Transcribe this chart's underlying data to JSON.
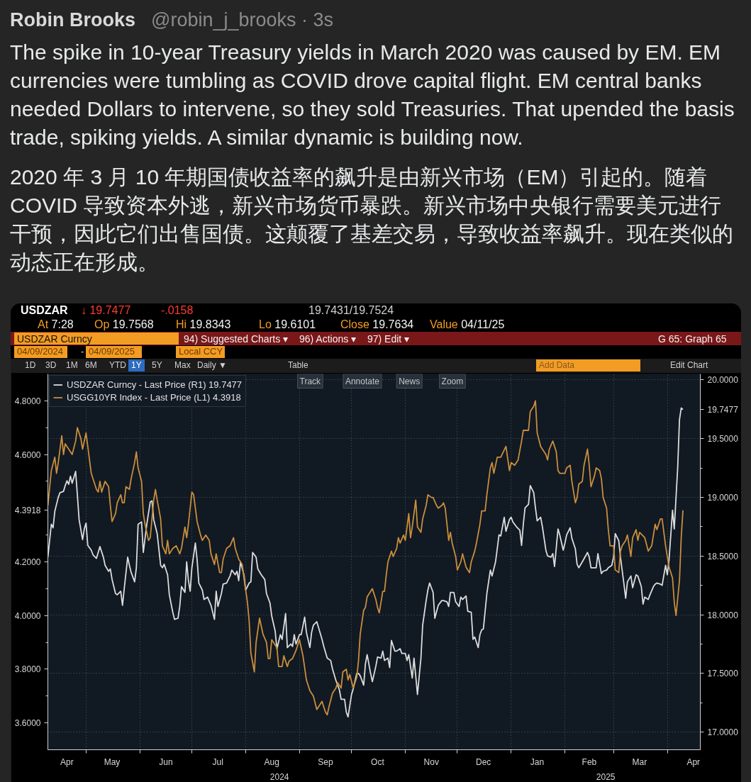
{
  "chart_data": {
    "type": "line",
    "title": "The spike in 10-year Treasury yields in March 2020 was caused by EM. EM currencies were tumbling as COVID drove capital flight. EM central banks needed Dollars to intervene, so they sold Treasuries. That upended the basis trade, spiking yields. A similar dynamic is building now.",
    "subtitle": "2020 年 3 月 10 年期国债收益率的飙升是由新兴市场（EM）引起的。随着 COVID 导致资本外逃，新兴市场货币暴跌。新兴市场中央银行需要美元进行干预，因此它们出售国债。这颠覆了基差交易，导致收益率飙升。现在类似的动态正在形成。",
    "annotations": [
      "Robin Brooks",
      "@robin_j_brooks · 3s",
      "USDZAR",
      "↓ 19.7477",
      "-.0158",
      "19.7431/19.7524",
      "At 7:28",
      "Op 19.7568",
      "Hi 19.8343",
      "Lo 19.6101",
      "Close 19.7634",
      "Value 04/11/25",
      "USDZAR Curncy",
      "94) Suggested Charts ▾",
      "96) Actions ▾",
      "97) Edit ▾",
      "G 65: Graph 65",
      "04/09/2024",
      "-",
      "04/09/2025",
      "Local CCY",
      "1D",
      "3D",
      "1M",
      "6M",
      "YTD",
      "1Y",
      "5Y",
      "Max",
      "Daily ▼",
      "Table",
      "Add Data",
      "Edit Chart",
      "Track",
      "Annotate",
      "News",
      "Zoom",
      "2024",
      "2025"
    ],
    "xlim": [
      "2024-04-09",
      "2025-04-20"
    ],
    "xticks": [
      {
        "value": "2024-04-20",
        "label": "Apr"
      },
      {
        "value": "2024-05-01",
        "label": null
      },
      {
        "value": "2024-05-16",
        "label": "May"
      },
      {
        "value": "2024-06-01",
        "label": null
      },
      {
        "value": "2024-06-16",
        "label": "Jun"
      },
      {
        "value": "2024-07-01",
        "label": null
      },
      {
        "value": "2024-07-16",
        "label": "Jul"
      },
      {
        "value": "2024-08-01",
        "label": null
      },
      {
        "value": "2024-08-16",
        "label": "Aug"
      },
      {
        "value": "2024-09-01",
        "label": null
      },
      {
        "value": "2024-09-16",
        "label": "Sep"
      },
      {
        "value": "2024-10-01",
        "label": null
      },
      {
        "value": "2024-10-16",
        "label": "Oct"
      },
      {
        "value": "2024-11-01",
        "label": null
      },
      {
        "value": "2024-11-16",
        "label": "Nov"
      },
      {
        "value": "2024-12-01",
        "label": null
      },
      {
        "value": "2024-12-16",
        "label": "Dec"
      },
      {
        "value": "2025-01-01",
        "label": null
      },
      {
        "value": "2025-01-16",
        "label": "Jan"
      },
      {
        "value": "2025-02-01",
        "label": null
      },
      {
        "value": "2025-02-15",
        "label": "Feb"
      },
      {
        "value": "2025-03-01",
        "label": null
      },
      {
        "value": "2025-03-16",
        "label": "Mar"
      },
      {
        "value": "2025-04-01",
        "label": null
      },
      {
        "value": "2025-04-16",
        "label": "Apr"
      }
    ],
    "ylim": [
      3.5,
      4.9
    ],
    "yticks": [
      {
        "value": 3.6,
        "label": "3.6000"
      },
      {
        "value": 3.7,
        "label": null
      },
      {
        "value": 3.8,
        "label": "3.8000"
      },
      {
        "value": 3.9,
        "label": null
      },
      {
        "value": 4.0,
        "label": "4.0000"
      },
      {
        "value": 4.1,
        "label": null
      },
      {
        "value": 4.2,
        "label": "4.2000"
      },
      {
        "value": 4.3,
        "label": null
      },
      {
        "value": 4.3918,
        "label": "4.3918"
      },
      {
        "value": 4.5,
        "label": null
      },
      {
        "value": 4.6,
        "label": "4.6000"
      },
      {
        "value": 4.7,
        "label": null
      },
      {
        "value": 4.8,
        "label": "4.8000"
      }
    ],
    "y2lim": [
      16.85,
      20.05
    ],
    "y2ticks": [
      {
        "value": 17.0,
        "label": "17.0000"
      },
      {
        "value": 17.25,
        "label": null
      },
      {
        "value": 17.5,
        "label": "17.5000"
      },
      {
        "value": 17.75,
        "label": null
      },
      {
        "value": 18.0,
        "label": "18.0000"
      },
      {
        "value": 18.25,
        "label": null
      },
      {
        "value": 18.5,
        "label": "18.5000"
      },
      {
        "value": 18.75,
        "label": null
      },
      {
        "value": 19.0,
        "label": "19.0000"
      },
      {
        "value": 19.25,
        "label": null
      },
      {
        "value": 19.5,
        "label": "19.5000"
      },
      {
        "value": 19.7477,
        "label": "19.7477"
      },
      {
        "value": 20.0,
        "label": "20.0000"
      }
    ],
    "grid": true,
    "legend": "top left",
    "series": [
      {
        "name": "USDZAR Curncy - Last Price (R1) 19.7477",
        "color": "#dcdcdc",
        "axis": "y2",
        "x": [
          "2024-04-09",
          "2024-04-10",
          "2024-04-11",
          "2024-04-12",
          "2024-04-13",
          "2024-04-15",
          "2024-04-16",
          "2024-04-18",
          "2024-04-19",
          "2024-04-20",
          "2024-04-21",
          "2024-04-22",
          "2024-04-23",
          "2024-04-25",
          "2024-04-26",
          "2024-04-27",
          "2024-04-29",
          "2024-04-30",
          "2024-05-01",
          "2024-05-02",
          "2024-05-04",
          "2024-05-05",
          "2024-05-07",
          "2024-05-08",
          "2024-05-09",
          "2024-05-11",
          "2024-05-12",
          "2024-05-14",
          "2024-05-15",
          "2024-05-16",
          "2024-05-18",
          "2024-05-19",
          "2024-05-21",
          "2024-05-22",
          "2024-05-23",
          "2024-05-25",
          "2024-05-26",
          "2024-05-27",
          "2024-05-29",
          "2024-05-30",
          "2024-05-31",
          "2024-06-02",
          "2024-06-03",
          "2024-06-05",
          "2024-06-07",
          "2024-06-08",
          "2024-06-09",
          "2024-06-11",
          "2024-06-13",
          "2024-06-14",
          "2024-06-15",
          "2024-06-17",
          "2024-06-18",
          "2024-06-20",
          "2024-06-21",
          "2024-06-23",
          "2024-06-24",
          "2024-06-25",
          "2024-06-27",
          "2024-06-28",
          "2024-06-29",
          "2024-06-30",
          "2024-07-01",
          "2024-07-03",
          "2024-07-04",
          "2024-07-05",
          "2024-07-07",
          "2024-07-08",
          "2024-07-10",
          "2024-07-12",
          "2024-07-14",
          "2024-07-15",
          "2024-07-16",
          "2024-07-18",
          "2024-07-19",
          "2024-07-21",
          "2024-07-23",
          "2024-07-24",
          "2024-07-26",
          "2024-07-27",
          "2024-07-28",
          "2024-07-29",
          "2024-07-31",
          "2024-08-01",
          "2024-08-03",
          "2024-08-04",
          "2024-08-05",
          "2024-08-07",
          "2024-08-08",
          "2024-08-10",
          "2024-08-12",
          "2024-08-13",
          "2024-08-15",
          "2024-08-16",
          "2024-08-18",
          "2024-08-19",
          "2024-08-21",
          "2024-08-22",
          "2024-08-24",
          "2024-08-25",
          "2024-08-27",
          "2024-08-28",
          "2024-08-29",
          "2024-08-30",
          "2024-09-01",
          "2024-09-02",
          "2024-09-04",
          "2024-09-05",
          "2024-09-07",
          "2024-09-08",
          "2024-09-09",
          "2024-09-11",
          "2024-09-12",
          "2024-09-14",
          "2024-09-15",
          "2024-09-17",
          "2024-09-19",
          "2024-09-20",
          "2024-09-22",
          "2024-09-24",
          "2024-09-25",
          "2024-09-27",
          "2024-09-28",
          "2024-09-29",
          "2024-10-01",
          "2024-10-02",
          "2024-10-04",
          "2024-10-05",
          "2024-10-06",
          "2024-10-08",
          "2024-10-09",
          "2024-10-10",
          "2024-10-12",
          "2024-10-13",
          "2024-10-15",
          "2024-10-16",
          "2024-10-18",
          "2024-10-19",
          "2024-10-20",
          "2024-10-22",
          "2024-10-23",
          "2024-10-24",
          "2024-10-26",
          "2024-10-27",
          "2024-10-29",
          "2024-10-30",
          "2024-11-01",
          "2024-11-02",
          "2024-11-03",
          "2024-11-05",
          "2024-11-06",
          "2024-11-07",
          "2024-11-08",
          "2024-11-10",
          "2024-11-11",
          "2024-11-13",
          "2024-11-14",
          "2024-11-15",
          "2024-11-17",
          "2024-11-18",
          "2024-11-20",
          "2024-11-22",
          "2024-11-23",
          "2024-11-25",
          "2024-11-26",
          "2024-11-27",
          "2024-11-29",
          "2024-11-30",
          "2024-12-02",
          "2024-12-03",
          "2024-12-04",
          "2024-12-06",
          "2024-12-07",
          "2024-12-09",
          "2024-12-10",
          "2024-12-11",
          "2024-12-13",
          "2024-12-14",
          "2024-12-15",
          "2024-12-16",
          "2024-12-18",
          "2024-12-20",
          "2024-12-21",
          "2024-12-23",
          "2024-12-25",
          "2024-12-26",
          "2024-12-28",
          "2024-12-29",
          "2024-12-31",
          "2025-01-01",
          "2025-01-02",
          "2025-01-04",
          "2025-01-06",
          "2025-01-07",
          "2025-01-08",
          "2025-01-09",
          "2025-01-11",
          "2025-01-12",
          "2025-01-14",
          "2025-01-15",
          "2025-01-16",
          "2025-01-18",
          "2025-01-19",
          "2025-01-21",
          "2025-01-22",
          "2025-01-24",
          "2025-01-25",
          "2025-01-26",
          "2025-01-28",
          "2025-01-29",
          "2025-01-31",
          "2025-02-01",
          "2025-02-02",
          "2025-02-04",
          "2025-02-05",
          "2025-02-07",
          "2025-02-08",
          "2025-02-09",
          "2025-02-11",
          "2025-02-14",
          "2025-02-15",
          "2025-02-16",
          "2025-02-19",
          "2025-02-20",
          "2025-02-22",
          "2025-02-23",
          "2025-02-25",
          "2025-02-26",
          "2025-02-28",
          "2025-03-01",
          "2025-03-02",
          "2025-03-04",
          "2025-03-05",
          "2025-03-07",
          "2025-03-08",
          "2025-03-09",
          "2025-03-11",
          "2025-03-12",
          "2025-03-14",
          "2025-03-15",
          "2025-03-17",
          "2025-03-18",
          "2025-03-19",
          "2025-03-21",
          "2025-03-22",
          "2025-03-24",
          "2025-03-25",
          "2025-03-26",
          "2025-03-28",
          "2025-03-29",
          "2025-03-31",
          "2025-04-01",
          "2025-04-02",
          "2025-04-04",
          "2025-04-05",
          "2025-04-07",
          "2025-04-08",
          "2025-04-09",
          "2025-04-10"
        ],
        "values": [
          18.49,
          18.63,
          18.77,
          18.74,
          18.88,
          19.0,
          19.04,
          19.05,
          19.1,
          19.14,
          19.11,
          19.18,
          19.12,
          19.22,
          19.02,
          18.81,
          18.64,
          18.73,
          18.78,
          18.59,
          18.55,
          18.51,
          18.48,
          18.53,
          18.58,
          18.49,
          18.42,
          18.37,
          18.39,
          18.3,
          18.18,
          18.17,
          18.2,
          18.08,
          18.22,
          18.49,
          18.42,
          18.36,
          18.28,
          18.4,
          18.77,
          18.79,
          18.53,
          18.77,
          18.96,
          18.97,
          18.81,
          18.69,
          18.42,
          18.4,
          18.43,
          18.34,
          18.17,
          18.02,
          17.96,
          17.97,
          18.07,
          18.24,
          18.19,
          18.45,
          18.29,
          18.2,
          18.4,
          18.61,
          18.47,
          18.27,
          18.21,
          18.13,
          18.15,
          18.08,
          17.96,
          18.2,
          18.07,
          18.18,
          18.26,
          18.27,
          18.33,
          18.38,
          18.34,
          18.37,
          18.29,
          18.45,
          18.34,
          18.21,
          18.27,
          18.28,
          18.53,
          18.49,
          18.39,
          18.34,
          18.3,
          18.18,
          18.1,
          17.99,
          17.86,
          17.71,
          17.83,
          17.79,
          18.01,
          17.72,
          17.75,
          17.73,
          17.83,
          17.75,
          17.83,
          17.83,
          17.98,
          17.85,
          17.72,
          17.85,
          17.91,
          17.94,
          17.89,
          17.79,
          17.73,
          17.63,
          17.61,
          17.54,
          17.44,
          17.36,
          17.28,
          17.28,
          17.17,
          17.13,
          17.32,
          17.37,
          17.5,
          17.5,
          17.48,
          17.4,
          17.58,
          17.66,
          17.5,
          17.43,
          17.56,
          17.64,
          17.63,
          17.69,
          17.61,
          17.63,
          17.55,
          17.78,
          17.69,
          17.69,
          17.71,
          17.67,
          17.67,
          17.61,
          17.66,
          17.46,
          17.63,
          17.48,
          17.32,
          17.63,
          17.91,
          18.12,
          18.21,
          18.27,
          18.19,
          17.97,
          18.08,
          18.12,
          18.12,
          18.11,
          18.07,
          18.19,
          18.19,
          18.11,
          18.07,
          18.15,
          18.13,
          18.16,
          18.03,
          18.02,
          17.79,
          17.81,
          17.72,
          17.83,
          17.87,
          17.88,
          18.18,
          18.38,
          18.33,
          18.45,
          18.68,
          18.67,
          18.83,
          18.71,
          18.81,
          18.83,
          18.79,
          18.75,
          18.72,
          18.59,
          18.77,
          18.91,
          18.94,
          19.1,
          19.04,
          18.91,
          18.8,
          18.83,
          18.75,
          18.55,
          18.5,
          18.49,
          18.52,
          18.41,
          18.73,
          18.68,
          18.55,
          18.61,
          18.68,
          18.74,
          18.65,
          18.56,
          18.43,
          18.4,
          18.45,
          18.53,
          18.49,
          18.4,
          18.4,
          18.52,
          18.35,
          18.37,
          18.38,
          18.4,
          18.42,
          18.49,
          18.69,
          18.63,
          18.49,
          18.26,
          18.14,
          18.28,
          18.33,
          18.23,
          18.34,
          18.33,
          18.24,
          18.09,
          18.15,
          18.13,
          18.17,
          18.24,
          18.26,
          18.27,
          18.26,
          18.25,
          18.42,
          18.34,
          18.47,
          18.89,
          18.73,
          19.26,
          19.66,
          19.76,
          19.7477
        ]
      },
      {
        "name": "USGG10YR Index - Last Price (L1) 4.3918",
        "color": "#c98e3c",
        "x": [
          "2024-04-09",
          "2024-04-11",
          "2024-04-13",
          "2024-04-14",
          "2024-04-15",
          "2024-04-17",
          "2024-04-18",
          "2024-04-19",
          "2024-04-21",
          "2024-04-23",
          "2024-04-25",
          "2024-04-26",
          "2024-04-28",
          "2024-04-29",
          "2024-05-01",
          "2024-05-02",
          "2024-05-04",
          "2024-05-07",
          "2024-05-08",
          "2024-05-09",
          "2024-05-10",
          "2024-05-12",
          "2024-05-14",
          "2024-05-15",
          "2024-05-16",
          "2024-05-18",
          "2024-05-19",
          "2024-05-21",
          "2024-05-22",
          "2024-05-23",
          "2024-05-24",
          "2024-05-26",
          "2024-05-27",
          "2024-05-29",
          "2024-05-30",
          "2024-05-31",
          "2024-06-02",
          "2024-06-03",
          "2024-06-04",
          "2024-06-06",
          "2024-06-07",
          "2024-06-09",
          "2024-06-10",
          "2024-06-11",
          "2024-06-13",
          "2024-06-14",
          "2024-06-16",
          "2024-06-17",
          "2024-06-18",
          "2024-06-20",
          "2024-06-22",
          "2024-06-24",
          "2024-06-25",
          "2024-06-27",
          "2024-06-28",
          "2024-06-29",
          "2024-07-01",
          "2024-07-02",
          "2024-07-04",
          "2024-07-06",
          "2024-07-07",
          "2024-07-09",
          "2024-07-11",
          "2024-07-12",
          "2024-07-14",
          "2024-07-15",
          "2024-07-17",
          "2024-07-18",
          "2024-07-19",
          "2024-07-21",
          "2024-07-23",
          "2024-07-25",
          "2024-07-26",
          "2024-07-28",
          "2024-07-30",
          "2024-07-31",
          "2024-08-02",
          "2024-08-03",
          "2024-08-04",
          "2024-08-06",
          "2024-08-07",
          "2024-08-09",
          "2024-08-11",
          "2024-08-13",
          "2024-08-14",
          "2024-08-15",
          "2024-08-16",
          "2024-08-18",
          "2024-08-19",
          "2024-08-20",
          "2024-08-22",
          "2024-08-23",
          "2024-08-25",
          "2024-08-26",
          "2024-08-28",
          "2024-08-30",
          "2024-09-01",
          "2024-09-03",
          "2024-09-05",
          "2024-09-07",
          "2024-09-09",
          "2024-09-11",
          "2024-09-12",
          "2024-09-14",
          "2024-09-16",
          "2024-09-17",
          "2024-09-18",
          "2024-09-20",
          "2024-09-22",
          "2024-09-23",
          "2024-09-25",
          "2024-09-26",
          "2024-09-28",
          "2024-09-29",
          "2024-09-30",
          "2024-10-02",
          "2024-10-04",
          "2024-10-05",
          "2024-10-06",
          "2024-10-08",
          "2024-10-09",
          "2024-10-10",
          "2024-10-11",
          "2024-10-13",
          "2024-10-15",
          "2024-10-16",
          "2024-10-17",
          "2024-10-19",
          "2024-10-20",
          "2024-10-21",
          "2024-10-22",
          "2024-10-24",
          "2024-10-25",
          "2024-10-27",
          "2024-10-28",
          "2024-10-29",
          "2024-10-31",
          "2024-11-01",
          "2024-11-03",
          "2024-11-04",
          "2024-11-05",
          "2024-11-07",
          "2024-11-08",
          "2024-11-10",
          "2024-11-11",
          "2024-11-13",
          "2024-11-14",
          "2024-11-16",
          "2024-11-17",
          "2024-11-19",
          "2024-11-20",
          "2024-11-22",
          "2024-11-23",
          "2024-11-24",
          "2024-11-26",
          "2024-11-27",
          "2024-11-28",
          "2024-11-30",
          "2024-12-01",
          "2024-12-03",
          "2024-12-04",
          "2024-12-06",
          "2024-12-08",
          "2024-12-09",
          "2024-12-11",
          "2024-12-12",
          "2024-12-14",
          "2024-12-15",
          "2024-12-17",
          "2024-12-18",
          "2024-12-20",
          "2024-12-21",
          "2024-12-22",
          "2024-12-24",
          "2024-12-26",
          "2024-12-29",
          "2024-12-31",
          "2025-01-01",
          "2025-01-03",
          "2025-01-05",
          "2025-01-07",
          "2025-01-08",
          "2025-01-11",
          "2025-01-12",
          "2025-01-14",
          "2025-01-15",
          "2025-01-16",
          "2025-01-18",
          "2025-01-19",
          "2025-01-21",
          "2025-01-22",
          "2025-01-23",
          "2025-01-25",
          "2025-01-27",
          "2025-01-28",
          "2025-01-29",
          "2025-02-01",
          "2025-02-02",
          "2025-02-04",
          "2025-02-05",
          "2025-02-07",
          "2025-02-08",
          "2025-02-09",
          "2025-02-11",
          "2025-02-12",
          "2025-02-14",
          "2025-02-15",
          "2025-02-16",
          "2025-02-18",
          "2025-02-19",
          "2025-02-21",
          "2025-02-22",
          "2025-02-23",
          "2025-02-25",
          "2025-02-26",
          "2025-02-27",
          "2025-03-01",
          "2025-03-02",
          "2025-03-04",
          "2025-03-05",
          "2025-03-06",
          "2025-03-08",
          "2025-03-09",
          "2025-03-11",
          "2025-03-12",
          "2025-03-14",
          "2025-03-15",
          "2025-03-16",
          "2025-03-19",
          "2025-03-21",
          "2025-03-23",
          "2025-03-25",
          "2025-03-26",
          "2025-03-28",
          "2025-03-29",
          "2025-03-31",
          "2025-04-01",
          "2025-04-02",
          "2025-04-04",
          "2025-04-05",
          "2025-04-06",
          "2025-04-08",
          "2025-04-09",
          "2025-04-10"
        ],
        "values": [
          4.41,
          4.54,
          4.59,
          4.53,
          4.57,
          4.67,
          4.6,
          4.64,
          4.62,
          4.6,
          4.65,
          4.7,
          4.66,
          4.62,
          4.68,
          4.63,
          4.53,
          4.47,
          4.46,
          4.5,
          4.46,
          4.5,
          4.48,
          4.41,
          4.35,
          4.38,
          4.42,
          4.45,
          4.42,
          4.42,
          4.48,
          4.47,
          4.51,
          4.57,
          4.61,
          4.55,
          4.5,
          4.38,
          4.34,
          4.28,
          4.29,
          4.43,
          4.47,
          4.43,
          4.36,
          4.26,
          4.23,
          4.28,
          4.23,
          4.25,
          4.26,
          4.23,
          4.25,
          4.33,
          4.29,
          4.34,
          4.46,
          4.45,
          4.35,
          4.3,
          4.28,
          4.3,
          4.28,
          4.23,
          4.19,
          4.23,
          4.16,
          4.16,
          4.21,
          4.25,
          4.26,
          4.29,
          4.25,
          4.21,
          4.19,
          4.14,
          4.05,
          3.98,
          3.86,
          3.79,
          3.9,
          3.99,
          3.93,
          3.9,
          3.84,
          3.84,
          3.91,
          3.89,
          3.88,
          3.81,
          3.81,
          3.85,
          3.81,
          3.83,
          3.84,
          3.87,
          3.91,
          3.85,
          3.76,
          3.72,
          3.7,
          3.65,
          3.66,
          3.68,
          3.64,
          3.63,
          3.66,
          3.71,
          3.73,
          3.75,
          3.73,
          3.79,
          3.8,
          3.76,
          3.78,
          3.73,
          3.77,
          3.83,
          3.93,
          4.02,
          4.03,
          4.07,
          4.08,
          4.1,
          4.06,
          4.03,
          4.01,
          4.09,
          4.09,
          4.15,
          4.2,
          4.24,
          4.22,
          4.25,
          4.29,
          4.27,
          4.3,
          4.28,
          4.38,
          4.29,
          4.33,
          4.43,
          4.33,
          4.31,
          4.36,
          4.41,
          4.45,
          4.44,
          4.44,
          4.41,
          4.4,
          4.41,
          4.42,
          4.4,
          4.28,
          4.31,
          4.27,
          4.22,
          4.17,
          4.2,
          4.23,
          4.18,
          4.16,
          4.2,
          4.24,
          4.27,
          4.34,
          4.39,
          4.39,
          4.45,
          4.55,
          4.57,
          4.53,
          4.59,
          4.59,
          4.63,
          4.54,
          4.57,
          4.56,
          4.58,
          4.65,
          4.69,
          4.69,
          4.76,
          4.78,
          4.8,
          4.68,
          4.63,
          4.62,
          4.6,
          4.58,
          4.62,
          4.65,
          4.61,
          4.54,
          4.53,
          4.53,
          4.55,
          4.56,
          4.5,
          4.42,
          4.44,
          4.49,
          4.5,
          4.56,
          4.62,
          4.56,
          4.48,
          4.52,
          4.55,
          4.54,
          4.51,
          4.44,
          4.4,
          4.32,
          4.26,
          4.26,
          4.17,
          4.16,
          4.24,
          4.26,
          4.28,
          4.3,
          4.22,
          4.29,
          4.32,
          4.28,
          4.31,
          4.29,
          4.24,
          4.26,
          4.34,
          4.32,
          4.36,
          4.36,
          4.26,
          4.22,
          4.18,
          4.14,
          4.05,
          4.0,
          4.13,
          4.29,
          4.3918
        ]
      }
    ]
  }
}
